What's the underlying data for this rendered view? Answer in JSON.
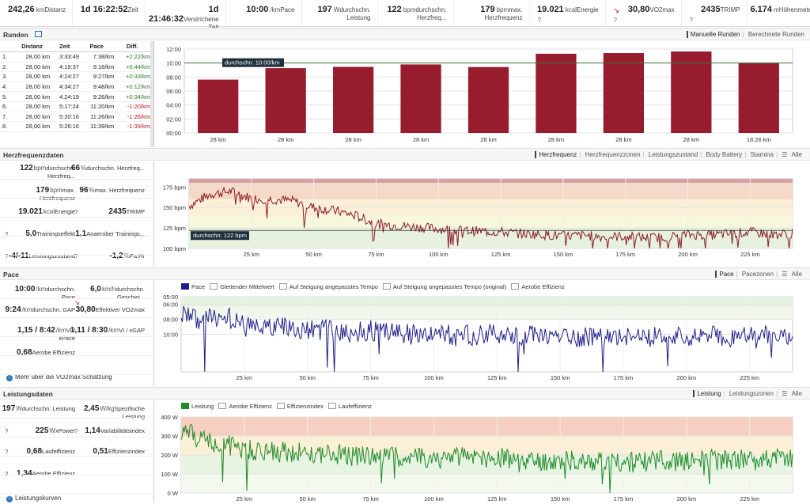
{
  "stats": [
    {
      "value": "242,26",
      "unit": "km",
      "label": "Distanz"
    },
    {
      "value": "1d 16:22:52",
      "unit": "",
      "label": "Zeit"
    },
    {
      "value": "1d 21:46:32",
      "unit": "",
      "label": "Verstrichene Zeit"
    },
    {
      "value": "10:00",
      "unit": "/km",
      "label": "Pace"
    },
    {
      "value": "197",
      "unit": "W",
      "label": "durchschn. Leistung"
    },
    {
      "value": "122",
      "unit": "bpm",
      "label": "durchschn. Herzfreq..."
    },
    {
      "value": "179",
      "unit": "bpm",
      "label": "max. Herzfrequenz"
    },
    {
      "value": "19.021",
      "unit": "kcal",
      "label": "Energie"
    },
    {
      "value": "30,80",
      "unit": "",
      "label": "VO2max"
    },
    {
      "value": "2435",
      "unit": "",
      "label": "TRIMP"
    },
    {
      "value": "6.174",
      "unit": "m",
      "label": "Höhenmeter"
    }
  ],
  "stat_marks": {
    "help": "?",
    "trend_arrow": "↘"
  },
  "laps": {
    "title": "Runden",
    "tabs": [
      "Manuelle Runden",
      "Berechnete Runden"
    ],
    "columns": [
      "Distanz",
      "Zeit",
      "Pace",
      "Diff."
    ],
    "rows": [
      [
        "1.",
        "28,00 km",
        "3:33:49",
        "7:38/km",
        "+2:22/km"
      ],
      [
        "2.",
        "28,00 km",
        "4:19:37",
        "9:16/km",
        "+0:44/km"
      ],
      [
        "3.",
        "28,00 km",
        "4:24:27",
        "9:27/km",
        "+0:33/km"
      ],
      [
        "4.",
        "28,00 km",
        "4:34:27",
        "9:48/km",
        "+0:12/km"
      ],
      [
        "5.",
        "28,00 km",
        "4:24:19",
        "9:26/km",
        "+0:34/km"
      ],
      [
        "6.",
        "28,00 km",
        "5:17:24",
        "11:20/km",
        "-1:20/km"
      ],
      [
        "7.",
        "28,00 km",
        "5:20:16",
        "11:26/km",
        "-1:26/km"
      ],
      [
        "8.",
        "28,00 km",
        "5:26:16",
        "11:39/km",
        "-1:39/km"
      ]
    ]
  },
  "heart": {
    "title": "Herzfrequenzdaten",
    "tabs": [
      "Herzfrequenz",
      "Herzfrequenzzonen",
      "Leistungszustand",
      "Body Battery",
      "Stamina",
      "Alle"
    ],
    "kv": [
      {
        "value": "122",
        "unit": "bpm",
        "label": "durchschn. Herzfreq..."
      },
      {
        "value": "66",
        "unit": "%",
        "label": "durchschn. Herzfreq..."
      },
      {
        "value": "179",
        "unit": "bpm",
        "label": "max. Herzfrequenz"
      },
      {
        "value": "96",
        "unit": "%",
        "label": "max. Herzfrequenz"
      },
      {
        "value": "19.021",
        "unit": "kcal",
        "label": "Energie"
      },
      {
        "value": "2435",
        "unit": "",
        "label": "TRIMP"
      },
      {
        "value": "5,0",
        "unit": "",
        "label": "Trainingseffekt"
      },
      {
        "value": "1,1",
        "unit": "",
        "label": "Anaerober Trainings..."
      },
      {
        "value": "-4/-11",
        "unit": "",
        "label": "Leistungszustand"
      },
      {
        "value": "-1,2",
        "unit": "%",
        "label": "Pa:Hr"
      }
    ]
  },
  "pace": {
    "title": "Pace",
    "tabs": [
      "Pace",
      "Pacezonen",
      "Alle"
    ],
    "kv": [
      {
        "value": "10:00",
        "unit": "/km",
        "label": "durchschn. Pace"
      },
      {
        "value": "6,0",
        "unit": "km/h",
        "label": "durchschn. Geschwi..."
      },
      {
        "value": "9:24",
        "unit": "/km",
        "label": "durchschn. GAP"
      },
      {
        "value": "30,80",
        "unit": "",
        "label": "Effektiver VO2max"
      },
      {
        "value": "1,15 / 8:42",
        "unit": "/km",
        "label": "VI / xPace"
      },
      {
        "value": "1,11 / 8:30",
        "unit": "/km",
        "label": "VI / xGAP"
      },
      {
        "value": "0,68",
        "unit": "",
        "label": "Aerobe Effizienz"
      }
    ],
    "link": "Mehr über die VO2max Schätzung",
    "legend": [
      "Pace",
      "Gleitender Mittelwert",
      "Auf Steigung angepasstes Tempo",
      "Auf Steigung angepasstes Tempo (original)",
      "Aerobe Effizienz"
    ]
  },
  "power": {
    "title": "Leistungsdaten",
    "tabs": [
      "Leistung",
      "Leistungszonen",
      "Alle"
    ],
    "kv": [
      {
        "value": "197",
        "unit": "W",
        "label": "durchschn. Leistung"
      },
      {
        "value": "2,45",
        "unit": "W/kg",
        "label": "Spezifische Leistung"
      },
      {
        "value": "225",
        "unit": "W",
        "label": "xPower"
      },
      {
        "value": "1,14",
        "unit": "",
        "label": "Variabilitätsindex"
      },
      {
        "value": "0,68",
        "unit": "",
        "label": "Laufeffizienz"
      },
      {
        "value": "0,51",
        "unit": "",
        "label": "Effizienzindex"
      },
      {
        "value": "1,34",
        "unit": "",
        "label": "Aerobe Effizienz"
      }
    ],
    "link": "Leistungskurven",
    "legend": [
      "Leistung",
      "Aerobe Effizienz",
      "Effizienzindex",
      "Laufeffizienz"
    ]
  },
  "chart_data": [
    {
      "type": "bar",
      "categories": [
        "28 km",
        "28 km",
        "28 km",
        "28 km",
        "28 km",
        "28 km",
        "28 km",
        "28 km",
        "18.26 km"
      ],
      "values": [
        7.63,
        9.27,
        9.45,
        9.8,
        9.43,
        11.33,
        11.43,
        11.65,
        10.0
      ],
      "ylim": [
        0,
        12
      ],
      "yticks": [
        "00:00",
        "02:00",
        "04:00",
        "06:00",
        "08:00",
        "10:00",
        "12:00"
      ],
      "avg_line": 10.0,
      "avg_label": "durchschn: 10:00/km",
      "color": "#961c2e"
    },
    {
      "type": "line",
      "series": [
        {
          "values": [
            152,
            166,
            170,
            161,
            160,
            158,
            150,
            146,
            140,
            130,
            128,
            126,
            124,
            122,
            121,
            120,
            118,
            117,
            115,
            116,
            114,
            115,
            113,
            114,
            117,
            116,
            118,
            120,
            117,
            118
          ]
        }
      ],
      "xlim": [
        0,
        242
      ],
      "ylim": [
        100,
        185
      ],
      "xticks": [
        "25 km",
        "50 km",
        "75 km",
        "100 km",
        "125 km",
        "150 km",
        "175 km",
        "200 km",
        "225 km"
      ],
      "yticks": [
        "100 bpm",
        "125 bpm",
        "150 bpm",
        "175 bpm"
      ],
      "avg_line": 122,
      "avg_label": "durchschn: 122 bpm",
      "color": "#8a1c2a"
    },
    {
      "type": "line",
      "series": [
        {
          "name": "Pace",
          "values": [
            7.2,
            8.3,
            7.5,
            9.0,
            9.4,
            9.0,
            9.6,
            9.3,
            9.8,
            9.5,
            9.8,
            10.0,
            9.6,
            10.2,
            10.1,
            10.0,
            10.3,
            9.9,
            10.4,
            10.5,
            10.1,
            10.4,
            10.2,
            10.6,
            10.3,
            10.2,
            10.4,
            10.0,
            10.1,
            10.2
          ]
        }
      ],
      "xlim": [
        0,
        242
      ],
      "ylim": [
        15,
        5
      ],
      "xticks": [
        "25 km",
        "50 km",
        "75 km",
        "100 km",
        "125 km",
        "150 km",
        "175 km",
        "200 km",
        "225 km"
      ],
      "yticks": [
        "05:00",
        "06:00",
        "08:00",
        "10:00"
      ],
      "color": "#1f1f8a"
    },
    {
      "type": "line",
      "series": [
        {
          "name": "Leistung",
          "values": [
            330,
            280,
            260,
            230,
            220,
            215,
            210,
            205,
            195,
            200,
            190,
            185,
            180,
            190,
            185,
            180,
            175,
            170,
            175,
            165,
            170,
            160,
            165,
            170,
            168,
            175,
            172,
            185,
            180,
            190
          ]
        }
      ],
      "xlim": [
        0,
        242
      ],
      "ylim": [
        0,
        400
      ],
      "xticks": [
        "25 km",
        "50 km",
        "75 km",
        "100 km",
        "125 km",
        "150 km",
        "175 km",
        "200 km",
        "225 km"
      ],
      "yticks": [
        "0 W",
        "100 W",
        "200 W",
        "300 W",
        "400 W"
      ],
      "color": "#1e8a2a"
    }
  ]
}
